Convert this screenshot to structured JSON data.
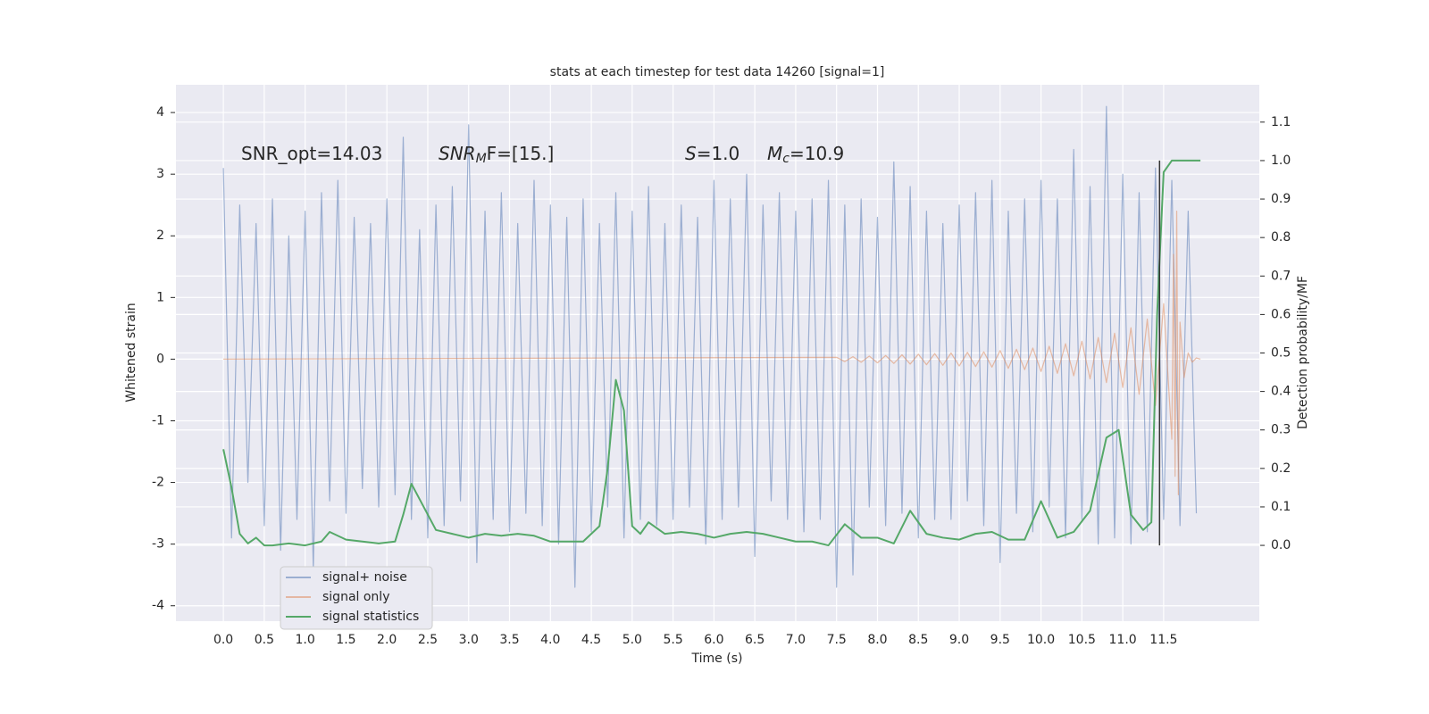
{
  "chart_data": {
    "type": "line",
    "title": "stats at each timestep for test data 14260 [signal=1]",
    "xlabel": "Time (s)",
    "ylabel": "Whitened strain",
    "y2label": "Detection probability/MF",
    "grid": true,
    "legend": "lower left",
    "xlim": [
      -0.58,
      12.67
    ],
    "ylim": [
      -4.25,
      4.45
    ],
    "y2lim": [
      -0.197,
      1.197
    ],
    "xticks": [
      {
        "value": 0,
        "label": "0.0"
      },
      0.5,
      {
        "value": 1,
        "label": "1.0"
      },
      1.5,
      {
        "value": 2,
        "label": "2.0"
      },
      2.5,
      {
        "value": 3,
        "label": "3.0"
      },
      3.5,
      {
        "value": 4,
        "label": "4.0"
      },
      4.5,
      {
        "value": 5,
        "label": "5.0"
      },
      5.5,
      {
        "value": 6,
        "label": "6.0"
      },
      6.5,
      {
        "value": 7,
        "label": "7.0"
      },
      7.5,
      {
        "value": 8,
        "label": "8.0"
      },
      8.5,
      {
        "value": 9,
        "label": "9.0"
      },
      9.5,
      {
        "value": 10,
        "label": "10.0"
      },
      10.5,
      {
        "value": 11,
        "label": "11.0"
      },
      11.5
    ],
    "yticks": [
      -4,
      -3,
      -2,
      -1,
      0,
      1,
      2,
      3,
      4
    ],
    "y2ticks": [
      {
        "value": 0,
        "label": "0.0"
      },
      0.1,
      0.2,
      0.3,
      0.4,
      0.5,
      0.6,
      0.7,
      0.8,
      0.9,
      {
        "value": 1,
        "label": "1.0"
      },
      1.1
    ],
    "annotations": [
      [
        {
          "text": "SNR_opt=14.03",
          "style": "normal"
        }
      ],
      [
        {
          "text": "SNR",
          "style": "italic"
        },
        {
          "text": "M",
          "style": "italic-sub"
        },
        {
          "text": "F=[15.]",
          "style": "normal"
        }
      ],
      [
        {
          "text": "S",
          "style": "italic"
        },
        {
          "text": "=1.0",
          "style": "normal"
        }
      ],
      [
        {
          "text": "M",
          "style": "italic"
        },
        {
          "text": "c",
          "style": "italic-sub"
        },
        {
          "text": "=10.9",
          "style": "normal"
        }
      ]
    ],
    "vline": {
      "x": 11.45,
      "ymin": 0,
      "ymax": 1,
      "axis": "y2",
      "color": "#333333"
    },
    "series": [
      {
        "name": "signal+ noise",
        "color": "#4c72b0",
        "opacity": 0.5,
        "x": [
          0,
          0.1,
          0.2,
          0.3,
          0.4,
          0.5,
          0.6,
          0.7,
          0.8,
          0.9,
          1,
          1.1,
          1.2,
          1.3,
          1.4,
          1.5,
          1.6,
          1.7,
          1.8,
          1.9,
          2,
          2.1,
          2.2,
          2.3,
          2.4,
          2.5,
          2.6,
          2.7,
          2.8,
          2.9,
          3,
          3.1,
          3.2,
          3.3,
          3.4,
          3.5,
          3.6,
          3.7,
          3.8,
          3.9,
          4,
          4.1,
          4.2,
          4.3,
          4.4,
          4.5,
          4.6,
          4.7,
          4.8,
          4.9,
          5,
          5.1,
          5.2,
          5.3,
          5.4,
          5.5,
          5.6,
          5.7,
          5.8,
          5.9,
          6,
          6.1,
          6.2,
          6.3,
          6.4,
          6.5,
          6.6,
          6.7,
          6.8,
          6.9,
          7,
          7.1,
          7.2,
          7.3,
          7.4,
          7.5,
          7.6,
          7.7,
          7.8,
          7.9,
          8,
          8.1,
          8.2,
          8.3,
          8.4,
          8.5,
          8.6,
          8.7,
          8.8,
          8.9,
          9,
          9.1,
          9.2,
          9.3,
          9.4,
          9.5,
          9.6,
          9.7,
          9.8,
          9.9,
          10,
          10.1,
          10.2,
          10.3,
          10.4,
          10.5,
          10.6,
          10.7,
          10.8,
          10.9,
          11,
          11.1,
          11.2,
          11.3,
          11.4,
          11.5,
          11.6,
          11.7,
          11.8,
          11.9
        ],
        "values": [
          3.1,
          -2.9,
          2.5,
          -2.0,
          2.2,
          -2.7,
          2.6,
          -3.1,
          2.0,
          -2.6,
          2.4,
          -3.4,
          2.7,
          -2.3,
          2.9,
          -2.5,
          2.3,
          -2.1,
          2.2,
          -2.4,
          2.6,
          -2.2,
          3.6,
          -2.6,
          2.1,
          -2.9,
          2.5,
          -2.7,
          2.8,
          -2.3,
          3.8,
          -3.3,
          2.4,
          -2.6,
          2.7,
          -2.8,
          2.2,
          -2.5,
          2.9,
          -2.7,
          2.5,
          -3.0,
          2.3,
          -3.7,
          2.6,
          -2.8,
          2.2,
          -2.4,
          2.7,
          -2.9,
          2.4,
          -2.6,
          2.8,
          -2.7,
          2.2,
          -2.6,
          2.5,
          -2.4,
          2.3,
          -3.0,
          2.9,
          -2.6,
          2.6,
          -2.4,
          3.0,
          -3.2,
          2.5,
          -2.3,
          2.7,
          -2.6,
          2.4,
          -2.8,
          2.6,
          -2.6,
          2.9,
          -3.7,
          2.5,
          -3.5,
          2.6,
          -2.4,
          2.3,
          -2.7,
          3.2,
          -2.5,
          2.8,
          -2.9,
          2.4,
          -2.6,
          2.2,
          -2.6,
          2.5,
          -2.3,
          2.7,
          -2.7,
          2.9,
          -3.3,
          2.4,
          -2.5,
          2.6,
          -2.8,
          2.9,
          -2.4,
          2.6,
          -2.9,
          3.4,
          -2.6,
          2.8,
          -3.0,
          4.1,
          -2.9,
          3.0,
          -3.0,
          2.7,
          -2.8,
          3.1,
          -2.6,
          2.9,
          -2.7,
          2.4,
          -2.5
        ]
      },
      {
        "name": "signal only",
        "color": "#dd8452",
        "opacity": 0.5,
        "x": [
          0,
          7.5,
          7.6,
          7.7,
          7.8,
          7.9,
          8,
          8.1,
          8.2,
          8.3,
          8.4,
          8.5,
          8.6,
          8.7,
          8.8,
          8.9,
          9,
          9.1,
          9.2,
          9.3,
          9.4,
          9.5,
          9.6,
          9.7,
          9.8,
          9.9,
          10,
          10.1,
          10.2,
          10.3,
          10.4,
          10.5,
          10.6,
          10.7,
          10.8,
          10.9,
          11,
          11.1,
          11.2,
          11.3,
          11.4,
          11.5,
          11.6,
          11.62,
          11.64,
          11.66,
          11.68,
          11.7,
          11.75,
          11.8,
          11.85,
          11.9,
          11.95
        ],
        "values": [
          0,
          0.03,
          -0.04,
          0.04,
          -0.05,
          0.05,
          -0.06,
          0.06,
          -0.07,
          0.07,
          -0.08,
          0.08,
          -0.09,
          0.09,
          -0.1,
          0.1,
          -0.11,
          0.11,
          -0.12,
          0.12,
          -0.13,
          0.14,
          -0.15,
          0.16,
          -0.17,
          0.18,
          -0.2,
          0.21,
          -0.23,
          0.25,
          -0.27,
          0.29,
          -0.32,
          0.35,
          -0.38,
          0.42,
          -0.46,
          0.51,
          -0.57,
          0.65,
          -0.75,
          0.9,
          -1.3,
          1.7,
          -1.9,
          2.4,
          -2.2,
          0.6,
          -0.3,
          0.1,
          -0.05,
          0.02,
          0
        ]
      },
      {
        "name": "signal statistics",
        "color": "#55a868",
        "opacity": 1,
        "axis": "y2",
        "x": [
          0,
          0.1,
          0.2,
          0.3,
          0.4,
          0.5,
          0.6,
          0.8,
          1,
          1.2,
          1.3,
          1.5,
          1.7,
          1.9,
          2.1,
          2.2,
          2.3,
          2.4,
          2.6,
          2.8,
          3,
          3.2,
          3.4,
          3.6,
          3.8,
          4,
          4.2,
          4.4,
          4.6,
          4.7,
          4.8,
          4.9,
          5,
          5.1,
          5.2,
          5.4,
          5.6,
          5.8,
          6,
          6.2,
          6.4,
          6.6,
          6.8,
          7,
          7.2,
          7.4,
          7.6,
          7.8,
          8,
          8.2,
          8.4,
          8.6,
          8.8,
          9,
          9.2,
          9.4,
          9.6,
          9.8,
          10,
          10.2,
          10.4,
          10.6,
          10.8,
          10.95,
          11.1,
          11.25,
          11.35,
          11.42,
          11.5,
          11.6,
          11.8,
          11.95
        ],
        "values": [
          0.25,
          0.15,
          0.03,
          0.005,
          0.02,
          0,
          0,
          0.005,
          0,
          0.01,
          0.035,
          0.015,
          0.01,
          0.005,
          0.01,
          0.08,
          0.16,
          0.12,
          0.04,
          0.03,
          0.02,
          0.03,
          0.025,
          0.03,
          0.025,
          0.01,
          0.01,
          0.01,
          0.05,
          0.2,
          0.43,
          0.35,
          0.05,
          0.03,
          0.06,
          0.03,
          0.035,
          0.03,
          0.02,
          0.03,
          0.035,
          0.03,
          0.02,
          0.01,
          0.01,
          0,
          0.055,
          0.02,
          0.02,
          0.005,
          0.09,
          0.03,
          0.02,
          0.015,
          0.03,
          0.035,
          0.015,
          0.015,
          0.115,
          0.02,
          0.035,
          0.09,
          0.28,
          0.3,
          0.08,
          0.04,
          0.06,
          0.6,
          0.97,
          1,
          1,
          1
        ]
      }
    ]
  }
}
